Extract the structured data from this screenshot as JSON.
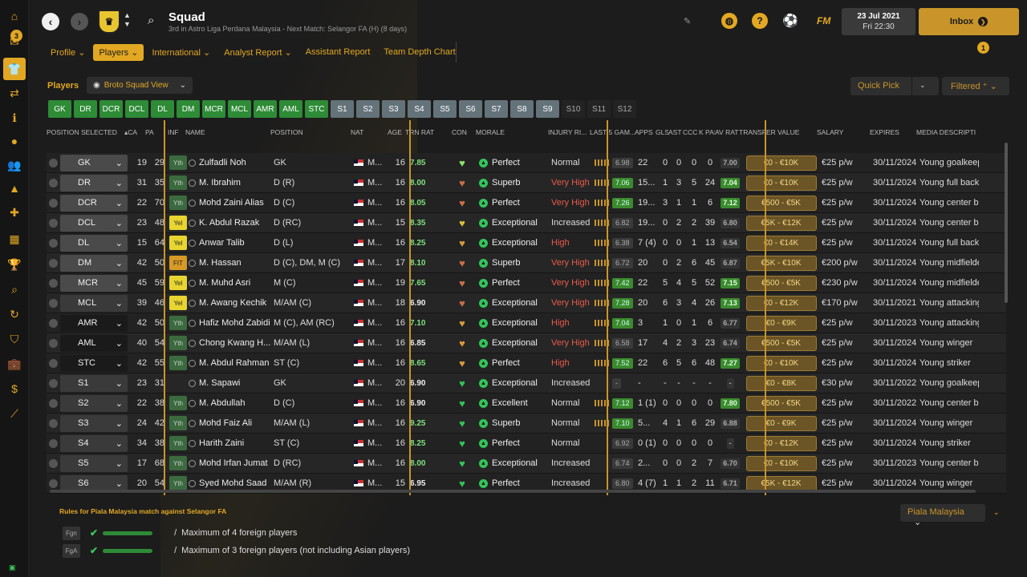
{
  "header": {
    "title": "Squad",
    "subtitle": "3rd in Astro Liga Perdana Malaysia - Next Match: Selangor FA (H) (8 days)",
    "date_line1": "23 Jul 2021",
    "date_line2": "Fri 22:30",
    "inbox_label": "Inbox",
    "fm_label": "FM",
    "nav_badge": "3",
    "notif_badge": "1"
  },
  "tabs": [
    "Profile",
    "Players",
    "International",
    "Analyst Report",
    "Assistant Report",
    "Team Depth Chart"
  ],
  "toolbar": {
    "players_label": "Players",
    "view_label": "Broto Squad View",
    "quickpick_label": "Quick Pick",
    "filtered_label": "Filtered"
  },
  "chips": [
    {
      "label": "GK",
      "state": "g"
    },
    {
      "label": "DR",
      "state": "g"
    },
    {
      "label": "DCR",
      "state": "g"
    },
    {
      "label": "DCL",
      "state": "g"
    },
    {
      "label": "DL",
      "state": "g"
    },
    {
      "label": "DM",
      "state": "g"
    },
    {
      "label": "MCR",
      "state": "g"
    },
    {
      "label": "MCL",
      "state": "g"
    },
    {
      "label": "AMR",
      "state": "g"
    },
    {
      "label": "AML",
      "state": "g"
    },
    {
      "label": "STC",
      "state": "g"
    },
    {
      "label": "S1",
      "state": "s"
    },
    {
      "label": "S2",
      "state": "s"
    },
    {
      "label": "S3",
      "state": "s"
    },
    {
      "label": "S4",
      "state": "s"
    },
    {
      "label": "S5",
      "state": "s"
    },
    {
      "label": "S6",
      "state": "s"
    },
    {
      "label": "S7",
      "state": "s"
    },
    {
      "label": "S8",
      "state": "s"
    },
    {
      "label": "S9",
      "state": "s"
    },
    {
      "label": "S10",
      "state": "n"
    },
    {
      "label": "S11",
      "state": "n"
    },
    {
      "label": "S12",
      "state": "n"
    }
  ],
  "columns": {
    "position_selected": "POSITION SELECTED",
    "ca": "CA",
    "pa": "PA",
    "inf": "INF",
    "name": "NAME",
    "position": "POSITION",
    "nat": "NAT",
    "age": "AGE",
    "trn_rat": "TRN RAT",
    "con": "CON",
    "morale": "MORALE",
    "injury": "INJURY RI...",
    "last5": "LAST 5 GAM...",
    "apps": "APPS",
    "gls": "GLS",
    "ast": "AST",
    "ccc": "CCC",
    "kpas": "K PAS",
    "avrat": "AV RAT",
    "transfer": "TRANSFER VALUE",
    "salary": "SALARY",
    "expires": "EXPIRES",
    "desc": "MEDIA DESCRIPTION"
  },
  "rows": [
    {
      "sel": "GK",
      "selStyle": "",
      "ca": "19",
      "pa": "29",
      "inf": "Yth",
      "name": "Zulfadli Noh",
      "position": "GK",
      "nat": "M...",
      "age": "16",
      "trn": "7.85",
      "trnColor": "#7de07d",
      "con": "#8fe070",
      "morale": "Perfect",
      "injury": "Normal",
      "injColor": "#ddd",
      "bars": true,
      "l5": "6.98",
      "l5hi": false,
      "apps": "22",
      "gls": "0",
      "ast": "0",
      "ccc": "0",
      "kpas": "0",
      "av": "7.00",
      "avhi": false,
      "tv": "€0 - €10K",
      "sal": "€25 p/w",
      "exp": "30/11/2024",
      "desc": "Young goalkeeper"
    },
    {
      "sel": "DR",
      "selStyle": "",
      "ca": "31",
      "pa": "35",
      "inf": "Yth",
      "name": "M. Ibrahim",
      "position": "D (R)",
      "nat": "M...",
      "age": "16",
      "trn": "8.00",
      "trnColor": "#7de07d",
      "con": "#c8704a",
      "morale": "Superb",
      "injury": "Very High",
      "injColor": "#e65b4b",
      "bars": true,
      "l5": "7.06",
      "l5hi": true,
      "apps": "15...",
      "gls": "1",
      "ast": "3",
      "ccc": "5",
      "kpas": "24",
      "av": "7.04",
      "avhi": true,
      "tv": "€0 - €10K",
      "sal": "€25 p/w",
      "exp": "30/11/2024",
      "desc": "Young full back"
    },
    {
      "sel": "DCR",
      "selStyle": "",
      "ca": "22",
      "pa": "70",
      "inf": "Yth",
      "name": "Mohd Zaini Alias",
      "position": "D (C)",
      "nat": "M...",
      "age": "16",
      "trn": "8.05",
      "trnColor": "#7de07d",
      "con": "#c8704a",
      "morale": "Perfect",
      "injury": "Very High",
      "injColor": "#e65b4b",
      "bars": true,
      "l5": "7.26",
      "l5hi": true,
      "apps": "19...",
      "gls": "3",
      "ast": "1",
      "ccc": "1",
      "kpas": "6",
      "av": "7.12",
      "avhi": true,
      "tv": "€500 - €5K",
      "sal": "€25 p/w",
      "exp": "30/11/2024",
      "desc": "Young center back"
    },
    {
      "sel": "DCL",
      "selStyle": "",
      "ca": "23",
      "pa": "48",
      "inf": "Yel",
      "name": "K. Abdul Razak",
      "position": "D (RC)",
      "nat": "M...",
      "age": "15",
      "trn": "8.35",
      "trnColor": "#7de07d",
      "con": "#d8c040",
      "morale": "Exceptional",
      "injury": "Increased",
      "injColor": "#ddd",
      "bars": true,
      "l5": "6.82",
      "l5hi": false,
      "apps": "19...",
      "gls": "0",
      "ast": "2",
      "ccc": "2",
      "kpas": "39",
      "av": "6.80",
      "avhi": false,
      "tv": "€5K - €12K",
      "sal": "€25 p/w",
      "exp": "30/11/2024",
      "desc": "Young center back"
    },
    {
      "sel": "DL",
      "selStyle": "",
      "ca": "15",
      "pa": "64",
      "inf": "Yel",
      "name": "Anwar Talib",
      "position": "D (L)",
      "nat": "M...",
      "age": "16",
      "trn": "8.25",
      "trnColor": "#7de07d",
      "con": "#d89a40",
      "morale": "Exceptional",
      "injury": "High",
      "injColor": "#e65b4b",
      "bars": true,
      "l5": "6.38",
      "l5hi": false,
      "apps": "7 (4)",
      "gls": "0",
      "ast": "0",
      "ccc": "1",
      "kpas": "13",
      "av": "6.54",
      "avhi": false,
      "tv": "€0 - €14K",
      "sal": "€25 p/w",
      "exp": "30/11/2024",
      "desc": "Young full back"
    },
    {
      "sel": "DM",
      "selStyle": "",
      "ca": "42",
      "pa": "50",
      "inf": "FIT",
      "name": "M. Hassan",
      "position": "D (C), DM, M (C)",
      "nat": "M...",
      "age": "17",
      "trn": "8.10",
      "trnColor": "#7de07d",
      "con": "#c8704a",
      "morale": "Superb",
      "injury": "Very High",
      "injColor": "#e65b4b",
      "bars": true,
      "l5": "6.72",
      "l5hi": false,
      "apps": "20",
      "gls": "0",
      "ast": "2",
      "ccc": "6",
      "kpas": "45",
      "av": "6.87",
      "avhi": false,
      "tv": "€5K - €10K",
      "sal": "€200 p/w",
      "exp": "30/11/2024",
      "desc": "Young midfielder"
    },
    {
      "sel": "MCR",
      "selStyle": "",
      "ca": "45",
      "pa": "59",
      "inf": "Yel",
      "name": "M. Muhd Asri",
      "position": "M (C)",
      "nat": "M...",
      "age": "19",
      "trn": "7.65",
      "trnColor": "#7de07d",
      "con": "#c8704a",
      "morale": "Perfect",
      "injury": "Very High",
      "injColor": "#e65b4b",
      "bars": true,
      "l5": "7.42",
      "l5hi": true,
      "apps": "22",
      "gls": "5",
      "ast": "4",
      "ccc": "5",
      "kpas": "52",
      "av": "7.15",
      "avhi": true,
      "tv": "€500 - €5K",
      "sal": "€230 p/w",
      "exp": "30/11/2024",
      "desc": "Young midfielder"
    },
    {
      "sel": "MCL",
      "selStyle": "mid",
      "ca": "39",
      "pa": "46",
      "inf": "Yel",
      "name": "M. Awang Kechik",
      "position": "M/AM (C)",
      "nat": "M...",
      "age": "18",
      "trn": "6.90",
      "trnColor": "#eee",
      "con": "#c8704a",
      "morale": "Exceptional",
      "injury": "Very High",
      "injColor": "#e65b4b",
      "bars": true,
      "l5": "7.28",
      "l5hi": true,
      "apps": "20",
      "gls": "6",
      "ast": "3",
      "ccc": "4",
      "kpas": "26",
      "av": "7.13",
      "avhi": true,
      "tv": "€0 - €12K",
      "sal": "€170 p/w",
      "exp": "30/11/2021",
      "desc": "Young attacking"
    },
    {
      "sel": "AMR",
      "selStyle": "dark",
      "ca": "42",
      "pa": "50",
      "inf": "Yth",
      "name": "Hafiz Mohd Zabidi",
      "position": "M (C), AM (RC)",
      "nat": "M...",
      "age": "16",
      "trn": "7.10",
      "trnColor": "#7de07d",
      "con": "#d89a40",
      "morale": "Exceptional",
      "injury": "High",
      "injColor": "#e65b4b",
      "bars": true,
      "l5": "7.04",
      "l5hi": true,
      "apps": "3",
      "gls": "1",
      "ast": "0",
      "ccc": "1",
      "kpas": "6",
      "av": "6.77",
      "avhi": false,
      "tv": "€0 - €9K",
      "sal": "€25 p/w",
      "exp": "30/11/2023",
      "desc": "Young attacking"
    },
    {
      "sel": "AML",
      "selStyle": "dark",
      "ca": "40",
      "pa": "54",
      "inf": "Yth",
      "name": "Chong Kwang H...",
      "position": "M/AM (L)",
      "nat": "M...",
      "age": "16",
      "trn": "6.85",
      "trnColor": "#eee",
      "con": "#d89a40",
      "morale": "Exceptional",
      "injury": "Very High",
      "injColor": "#e65b4b",
      "bars": true,
      "l5": "6.58",
      "l5hi": false,
      "apps": "17",
      "gls": "4",
      "ast": "2",
      "ccc": "3",
      "kpas": "23",
      "av": "6.74",
      "avhi": false,
      "tv": "€500 - €5K",
      "sal": "€25 p/w",
      "exp": "30/11/2024",
      "desc": "Young winger"
    },
    {
      "sel": "STC",
      "selStyle": "dark",
      "ca": "42",
      "pa": "55",
      "inf": "Yth",
      "name": "M. Abdul Rahman",
      "position": "ST (C)",
      "nat": "M...",
      "age": "16",
      "trn": "8.65",
      "trnColor": "#7de07d",
      "con": "#d89a40",
      "morale": "Perfect",
      "injury": "High",
      "injColor": "#e65b4b",
      "bars": true,
      "l5": "7.52",
      "l5hi": true,
      "apps": "22",
      "gls": "6",
      "ast": "5",
      "ccc": "6",
      "kpas": "48",
      "av": "7.27",
      "avhi": true,
      "tv": "€0 - €10K",
      "sal": "€25 p/w",
      "exp": "30/11/2024",
      "desc": "Young striker"
    },
    {
      "sel": "S1",
      "selStyle": "mid",
      "ca": "23",
      "pa": "31",
      "inf": "",
      "name": "M. Sapawi",
      "position": "GK",
      "nat": "M...",
      "age": "20",
      "trn": "6.90",
      "trnColor": "#eee",
      "con": "#35c35a",
      "morale": "Exceptional",
      "injury": "Increased",
      "injColor": "#ddd",
      "bars": false,
      "l5": "-",
      "l5hi": false,
      "apps": "-",
      "gls": "-",
      "ast": "-",
      "ccc": "-",
      "kpas": "-",
      "av": "-",
      "avhi": false,
      "tv": "€0 - €8K",
      "sal": "€30 p/w",
      "exp": "30/11/2022",
      "desc": "Young goalkeeper"
    },
    {
      "sel": "S2",
      "selStyle": "mid",
      "ca": "22",
      "pa": "38",
      "inf": "Yth",
      "name": "M. Abdullah",
      "position": "D (C)",
      "nat": "M...",
      "age": "16",
      "trn": "6.90",
      "trnColor": "#eee",
      "con": "#35c35a",
      "morale": "Excellent",
      "injury": "Normal",
      "injColor": "#ddd",
      "bars": true,
      "l5": "7.12",
      "l5hi": true,
      "apps": "1 (1)",
      "gls": "0",
      "ast": "0",
      "ccc": "0",
      "kpas": "0",
      "av": "7.80",
      "avhi": true,
      "tv": "€500 - €5K",
      "sal": "€25 p/w",
      "exp": "30/11/2022",
      "desc": "Young center back"
    },
    {
      "sel": "S3",
      "selStyle": "mid",
      "ca": "24",
      "pa": "42",
      "inf": "Yth",
      "name": "Mohd Faiz Ali",
      "position": "M/AM (L)",
      "nat": "M...",
      "age": "16",
      "trn": "9.25",
      "trnColor": "#7de07d",
      "con": "#35c35a",
      "morale": "Superb",
      "injury": "Normal",
      "injColor": "#ddd",
      "bars": true,
      "l5": "7.10",
      "l5hi": true,
      "apps": "5...",
      "gls": "4",
      "ast": "1",
      "ccc": "6",
      "kpas": "29",
      "av": "6.88",
      "avhi": false,
      "tv": "€0 - €9K",
      "sal": "€25 p/w",
      "exp": "30/11/2024",
      "desc": "Young winger"
    },
    {
      "sel": "S4",
      "selStyle": "mid",
      "ca": "34",
      "pa": "38",
      "inf": "Yth",
      "name": "Harith Zaini",
      "position": "ST (C)",
      "nat": "M...",
      "age": "16",
      "trn": "8.25",
      "trnColor": "#7de07d",
      "con": "#35c35a",
      "morale": "Perfect",
      "injury": "Normal",
      "injColor": "#ddd",
      "bars": false,
      "l5": "6.92",
      "l5hi": false,
      "apps": "0 (1)",
      "gls": "0",
      "ast": "0",
      "ccc": "0",
      "kpas": "0",
      "av": "-",
      "avhi": false,
      "tv": "€0 - €12K",
      "sal": "€25 p/w",
      "exp": "30/11/2024",
      "desc": "Young striker"
    },
    {
      "sel": "S5",
      "selStyle": "mid",
      "ca": "17",
      "pa": "68",
      "inf": "Yth",
      "name": "Mohd Irfan Jumat",
      "position": "D (RC)",
      "nat": "M...",
      "age": "16",
      "trn": "8.00",
      "trnColor": "#7de07d",
      "con": "#35c35a",
      "morale": "Exceptional",
      "injury": "Increased",
      "injColor": "#ddd",
      "bars": false,
      "l5": "6.74",
      "l5hi": false,
      "apps": "2...",
      "gls": "0",
      "ast": "0",
      "ccc": "2",
      "kpas": "7",
      "av": "6.70",
      "avhi": false,
      "tv": "€0 - €10K",
      "sal": "€25 p/w",
      "exp": "30/11/2023",
      "desc": "Young center back"
    },
    {
      "sel": "S6",
      "selStyle": "mid",
      "ca": "20",
      "pa": "54",
      "inf": "Yth",
      "name": "Syed Mohd Saad",
      "position": "M/AM (R)",
      "nat": "M...",
      "age": "15",
      "trn": "6.95",
      "trnColor": "#eee",
      "con": "#35c35a",
      "morale": "Perfect",
      "injury": "Increased",
      "injColor": "#ddd",
      "bars": false,
      "l5": "6.80",
      "l5hi": false,
      "apps": "4 (7)",
      "gls": "1",
      "ast": "1",
      "ccc": "2",
      "kpas": "11",
      "av": "6.71",
      "avhi": false,
      "tv": "€5K - €12K",
      "sal": "€25 p/w",
      "exp": "30/11/2024",
      "desc": "Young winger"
    }
  ],
  "rules": {
    "title": "Rules for Piala Malaysia match against Selangor FA",
    "competition": "Piala Malaysia",
    "items": [
      {
        "tag": "Fgn",
        "separator": "/",
        "text": "Maximum of 4 foreign players"
      },
      {
        "tag": "FgA",
        "separator": "/",
        "text": "Maximum of 3 foreign players (not including Asian players)"
      }
    ]
  },
  "colors": {
    "accent": "#e2a823",
    "green": "#2e8b36",
    "danger": "#e65b4b"
  }
}
